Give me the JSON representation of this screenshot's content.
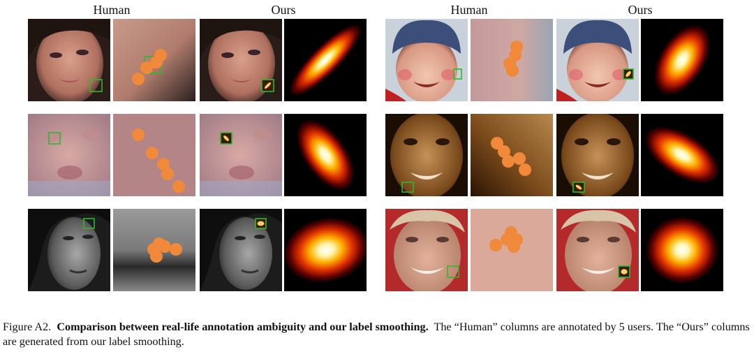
{
  "headers": [
    "Human",
    "Ours",
    "Human",
    "Ours"
  ],
  "caption": {
    "label": "Figure A2.",
    "bold": "Comparison between real-life annotation ambiguity and our label smoothing.",
    "text": "The “Human” columns are annotated by 5 users. The “Ours” columns are generated from our label smoothing."
  },
  "colors": {
    "annotation_box": "#2eb82e",
    "annotation_dot": "#f08a3a"
  }
}
